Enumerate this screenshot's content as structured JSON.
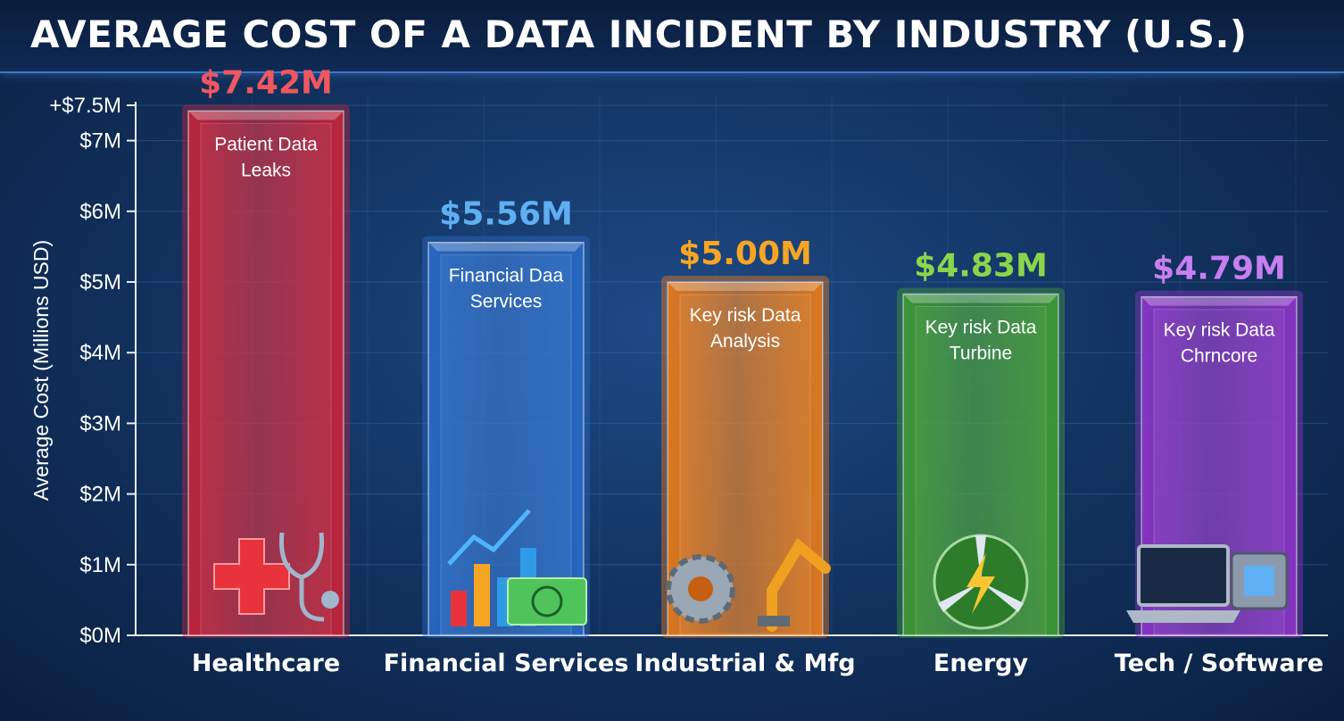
{
  "title": "AVERAGE COST OF A DATA INCIDENT BY INDUSTRY (U.S.)",
  "chart_data": {
    "type": "bar",
    "title": "AVERAGE COST OF A DATA INCIDENT BY INDUSTRY (U.S.)",
    "xlabel": "",
    "ylabel": "Average Cost (Millions USD)",
    "ylim": [
      0,
      7.5
    ],
    "grid": true,
    "yticks": [
      {
        "value": 0,
        "label": "$0M"
      },
      {
        "value": 1,
        "label": "$1M"
      },
      {
        "value": 2,
        "label": "$2M"
      },
      {
        "value": 3,
        "label": "$3M"
      },
      {
        "value": 4,
        "label": "$4M"
      },
      {
        "value": 5,
        "label": "$5M"
      },
      {
        "value": 6,
        "label": "$6M"
      },
      {
        "value": 7,
        "label": "$7M"
      },
      {
        "value": 7.5,
        "label": "+$7.5M"
      }
    ],
    "categories": [
      "Healthcare",
      "Financial Services",
      "Industrial & Mfg",
      "Energy",
      "Tech / Software"
    ],
    "values": [
      7.42,
      5.56,
      5.0,
      4.83,
      4.79
    ],
    "value_labels": [
      "$7.42M",
      "$5.56M",
      "$5.00M",
      "$4.83M",
      "$4.79M"
    ],
    "bar_annotations": [
      [
        "Patient Data",
        "Leaks"
      ],
      [
        "Financial Daa",
        "Services"
      ],
      [
        "Key risk Data",
        "Analysis"
      ],
      [
        "Key risk Data",
        "Turbine"
      ],
      [
        "Key risk Data",
        "Chrncore"
      ]
    ],
    "bar_icons": [
      "medical-cross-stethoscope-icon",
      "growth-chart-money-icon",
      "gear-robot-arm-icon",
      "wind-turbine-lightning-icon",
      "laptop-chip-icon"
    ],
    "colors": {
      "bars": [
        "#c3243a",
        "#2769c4",
        "#e47a1c",
        "#3f9a34",
        "#8a35c6"
      ],
      "value_labels": [
        "#f0575f",
        "#5fb0f2",
        "#f6a623",
        "#8ad64b",
        "#c77ef0"
      ]
    }
  }
}
